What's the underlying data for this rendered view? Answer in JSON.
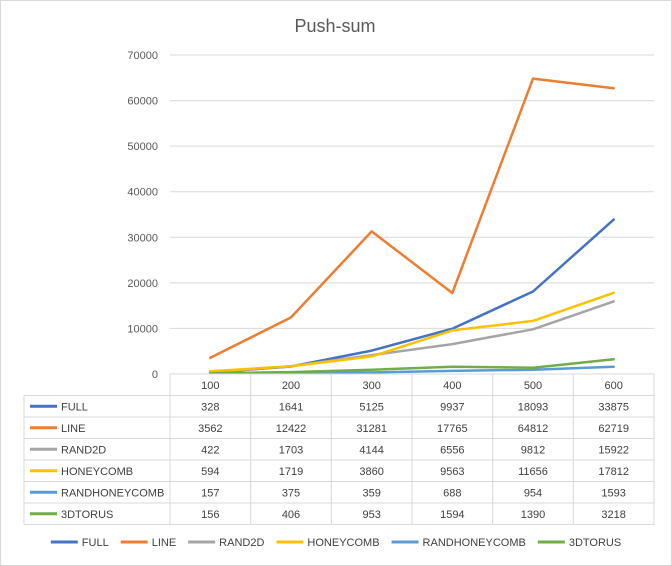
{
  "chart_data": {
    "type": "line",
    "title": "Push-sum",
    "xlabel": "",
    "ylabel": "",
    "categories": [
      "100",
      "200",
      "300",
      "400",
      "500",
      "600"
    ],
    "ylim": [
      0,
      70000
    ],
    "yticks": [
      0,
      10000,
      20000,
      30000,
      40000,
      50000,
      60000,
      70000
    ],
    "grid": true,
    "legend": "bottom",
    "data_table": true,
    "series": [
      {
        "name": "FULL",
        "color": "#4472C4",
        "values": [
          328,
          1641,
          5125,
          9937,
          18093,
          33875
        ]
      },
      {
        "name": "LINE",
        "color": "#ED7D31",
        "values": [
          3562,
          12422,
          31281,
          17765,
          64812,
          62719
        ]
      },
      {
        "name": "RAND2D",
        "color": "#A5A5A5",
        "values": [
          422,
          1703,
          4144,
          6556,
          9812,
          15922
        ]
      },
      {
        "name": "HONEYCOMB",
        "color": "#FFC000",
        "values": [
          594,
          1719,
          3860,
          9563,
          11656,
          17812
        ]
      },
      {
        "name": "RANDHONEYCOMB",
        "color": "#5B9BD5",
        "values": [
          157,
          375,
          359,
          688,
          954,
          1593
        ]
      },
      {
        "name": "3DTORUS",
        "color": "#70AD47",
        "values": [
          156,
          406,
          953,
          1594,
          1390,
          3218
        ]
      }
    ]
  }
}
